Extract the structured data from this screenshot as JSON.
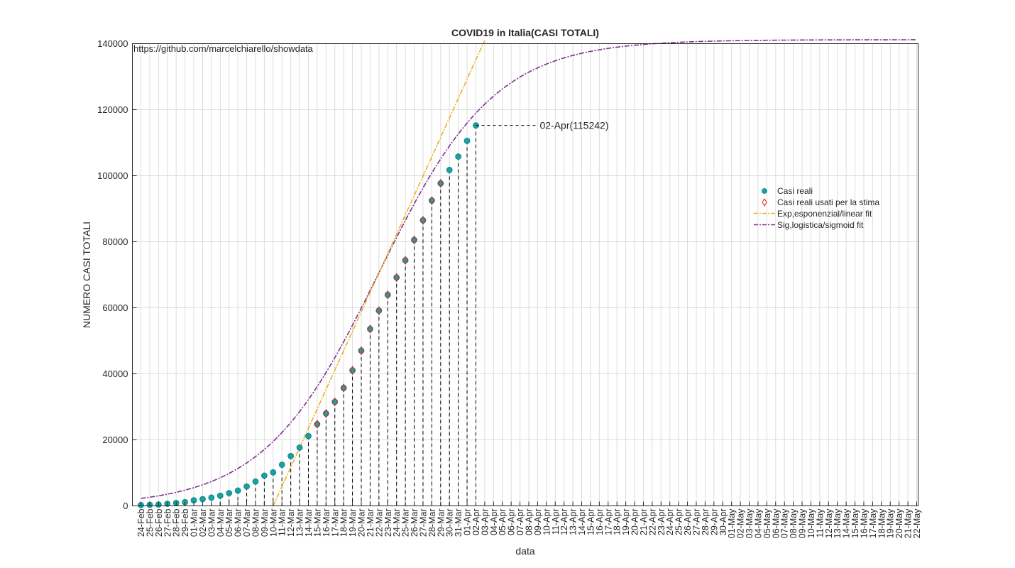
{
  "chart_data": {
    "type": "scatter",
    "title": "COVID19 in Italia(CASI TOTALI)",
    "xlabel": "data",
    "ylabel": "NUMERO CASI TOTALI",
    "watermark": "https://github.com/marcelchiarello/showdata",
    "ylim": [
      0,
      140000
    ],
    "yticks": [
      0,
      20000,
      40000,
      60000,
      80000,
      100000,
      120000,
      140000
    ],
    "grid": true,
    "legend_position": "right",
    "x_dates": [
      "24-Feb",
      "25-Feb",
      "26-Feb",
      "27-Feb",
      "28-Feb",
      "29-Feb",
      "01-Mar",
      "02-Mar",
      "03-Mar",
      "04-Mar",
      "05-Mar",
      "06-Mar",
      "07-Mar",
      "08-Mar",
      "09-Mar",
      "10-Mar",
      "11-Mar",
      "12-Mar",
      "13-Mar",
      "14-Mar",
      "15-Mar",
      "16-Mar",
      "17-Mar",
      "18-Mar",
      "19-Mar",
      "20-Mar",
      "21-Mar",
      "22-Mar",
      "23-Mar",
      "24-Mar",
      "25-Mar",
      "26-Mar",
      "27-Mar",
      "28-Mar",
      "29-Mar",
      "30-Mar",
      "31-Mar",
      "01-Apr",
      "02-Apr",
      "03-Apr",
      "04-Apr",
      "05-Apr",
      "06-Apr",
      "07-Apr",
      "08-Apr",
      "09-Apr",
      "10-Apr",
      "11-Apr",
      "12-Apr",
      "13-Apr",
      "14-Apr",
      "15-Apr",
      "16-Apr",
      "17-Apr",
      "18-Apr",
      "19-Apr",
      "20-Apr",
      "21-Apr",
      "22-Apr",
      "23-Apr",
      "24-Apr",
      "25-Apr",
      "26-Apr",
      "27-Apr",
      "28-Apr",
      "29-Apr",
      "30-Apr",
      "01-May",
      "02-May",
      "03-May",
      "04-May",
      "05-May",
      "06-May",
      "07-May",
      "08-May",
      "09-May",
      "10-May",
      "11-May",
      "12-May",
      "13-May",
      "14-May",
      "15-May",
      "16-May",
      "17-May",
      "18-May",
      "19-May",
      "20-May",
      "21-May",
      "22-May"
    ],
    "series": [
      {
        "name": "Casi reali",
        "color": "#17a2a2",
        "marker": "filled-circle",
        "values": [
          229,
          322,
          400,
          650,
          888,
          1128,
          1694,
          2036,
          2502,
          3089,
          3858,
          4636,
          5883,
          7375,
          9172,
          10149,
          12462,
          15113,
          17660,
          21157,
          24747,
          27980,
          31506,
          35713,
          41035,
          47021,
          53578,
          59138,
          63927,
          69176,
          74386,
          80539,
          86498,
          92472,
          97689,
          101739,
          105792,
          110574,
          115242
        ]
      },
      {
        "name": "Casi reali usati per la stima",
        "color": "#e8231f",
        "marker": "open-diamond",
        "start_date": "15-Mar",
        "values": [
          24747,
          27980,
          31506,
          35713,
          41035,
          47021,
          53578,
          59138,
          63927,
          69176,
          74386,
          80539,
          86498,
          92472,
          97689
        ]
      },
      {
        "name": "Exp,esponenzial/linear fit",
        "color": "#edb120",
        "line": "dash-dot",
        "points": [
          [
            "10-Mar",
            0
          ],
          [
            "03-Apr",
            141000
          ]
        ]
      },
      {
        "name": "Sig,logistica/sigmoid fit",
        "color": "#7e2f8e",
        "line": "dash-dot",
        "logistic": {
          "K": 141200,
          "x0_date": "22-Mar",
          "r": 0.1525
        }
      }
    ],
    "annotation": {
      "date": "02-Apr",
      "value": 115242,
      "text": "02-Apr(115242)"
    }
  }
}
